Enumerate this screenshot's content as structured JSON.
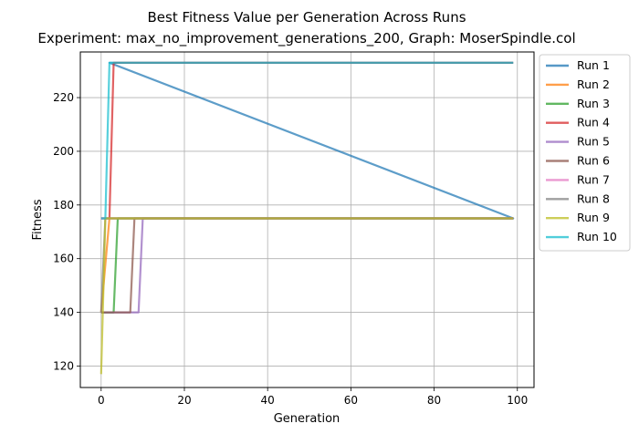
{
  "chart_data": {
    "type": "line",
    "title": "Best Fitness Value per Generation Across Runs",
    "subtitle": "Experiment: max_no_improvement_generations_200, Graph: MoserSpindle.col",
    "xlabel": "Generation",
    "ylabel": "Fitness",
    "xlim": [
      -5,
      104
    ],
    "ylim": [
      112,
      237
    ],
    "xticks": [
      0,
      20,
      40,
      60,
      80,
      100
    ],
    "yticks": [
      120,
      140,
      160,
      180,
      200,
      220
    ],
    "grid": true,
    "legend_position": "outside-right",
    "series": [
      {
        "name": "Run 1",
        "color": "#1f77b4",
        "points": [
          [
            0,
            175
          ],
          [
            99,
            175
          ],
          [
            2,
            233
          ],
          [
            99,
            233
          ]
        ]
      },
      {
        "name": "Run 2",
        "color": "#ff7f0e",
        "points": [
          [
            0,
            140
          ],
          [
            2,
            175
          ],
          [
            99,
            175
          ]
        ]
      },
      {
        "name": "Run 3",
        "color": "#2ca02c",
        "points": [
          [
            0,
            140
          ],
          [
            3,
            140
          ],
          [
            4,
            175
          ],
          [
            99,
            175
          ]
        ]
      },
      {
        "name": "Run 4",
        "color": "#d62728",
        "points": [
          [
            0,
            175
          ],
          [
            2,
            175
          ],
          [
            3,
            233
          ],
          [
            99,
            233
          ]
        ]
      },
      {
        "name": "Run 5",
        "color": "#9467bd",
        "points": [
          [
            0,
            140
          ],
          [
            9,
            140
          ],
          [
            10,
            175
          ],
          [
            99,
            175
          ]
        ]
      },
      {
        "name": "Run 6",
        "color": "#8c564b",
        "points": [
          [
            0,
            140
          ],
          [
            7,
            140
          ],
          [
            8,
            175
          ],
          [
            99,
            175
          ]
        ]
      },
      {
        "name": "Run 7",
        "color": "#e377c2",
        "points": [
          [
            0,
            175
          ],
          [
            99,
            175
          ]
        ]
      },
      {
        "name": "Run 8",
        "color": "#7f7f7f",
        "points": [
          [
            0,
            140
          ],
          [
            1,
            175
          ],
          [
            99,
            175
          ]
        ]
      },
      {
        "name": "Run 9",
        "color": "#bcbd22",
        "points": [
          [
            0,
            117
          ],
          [
            1,
            175
          ],
          [
            99,
            175
          ]
        ]
      },
      {
        "name": "Run 10",
        "color": "#17becf",
        "points": [
          [
            0,
            175
          ],
          [
            1,
            175
          ],
          [
            2,
            233
          ],
          [
            99,
            233
          ]
        ]
      }
    ]
  }
}
